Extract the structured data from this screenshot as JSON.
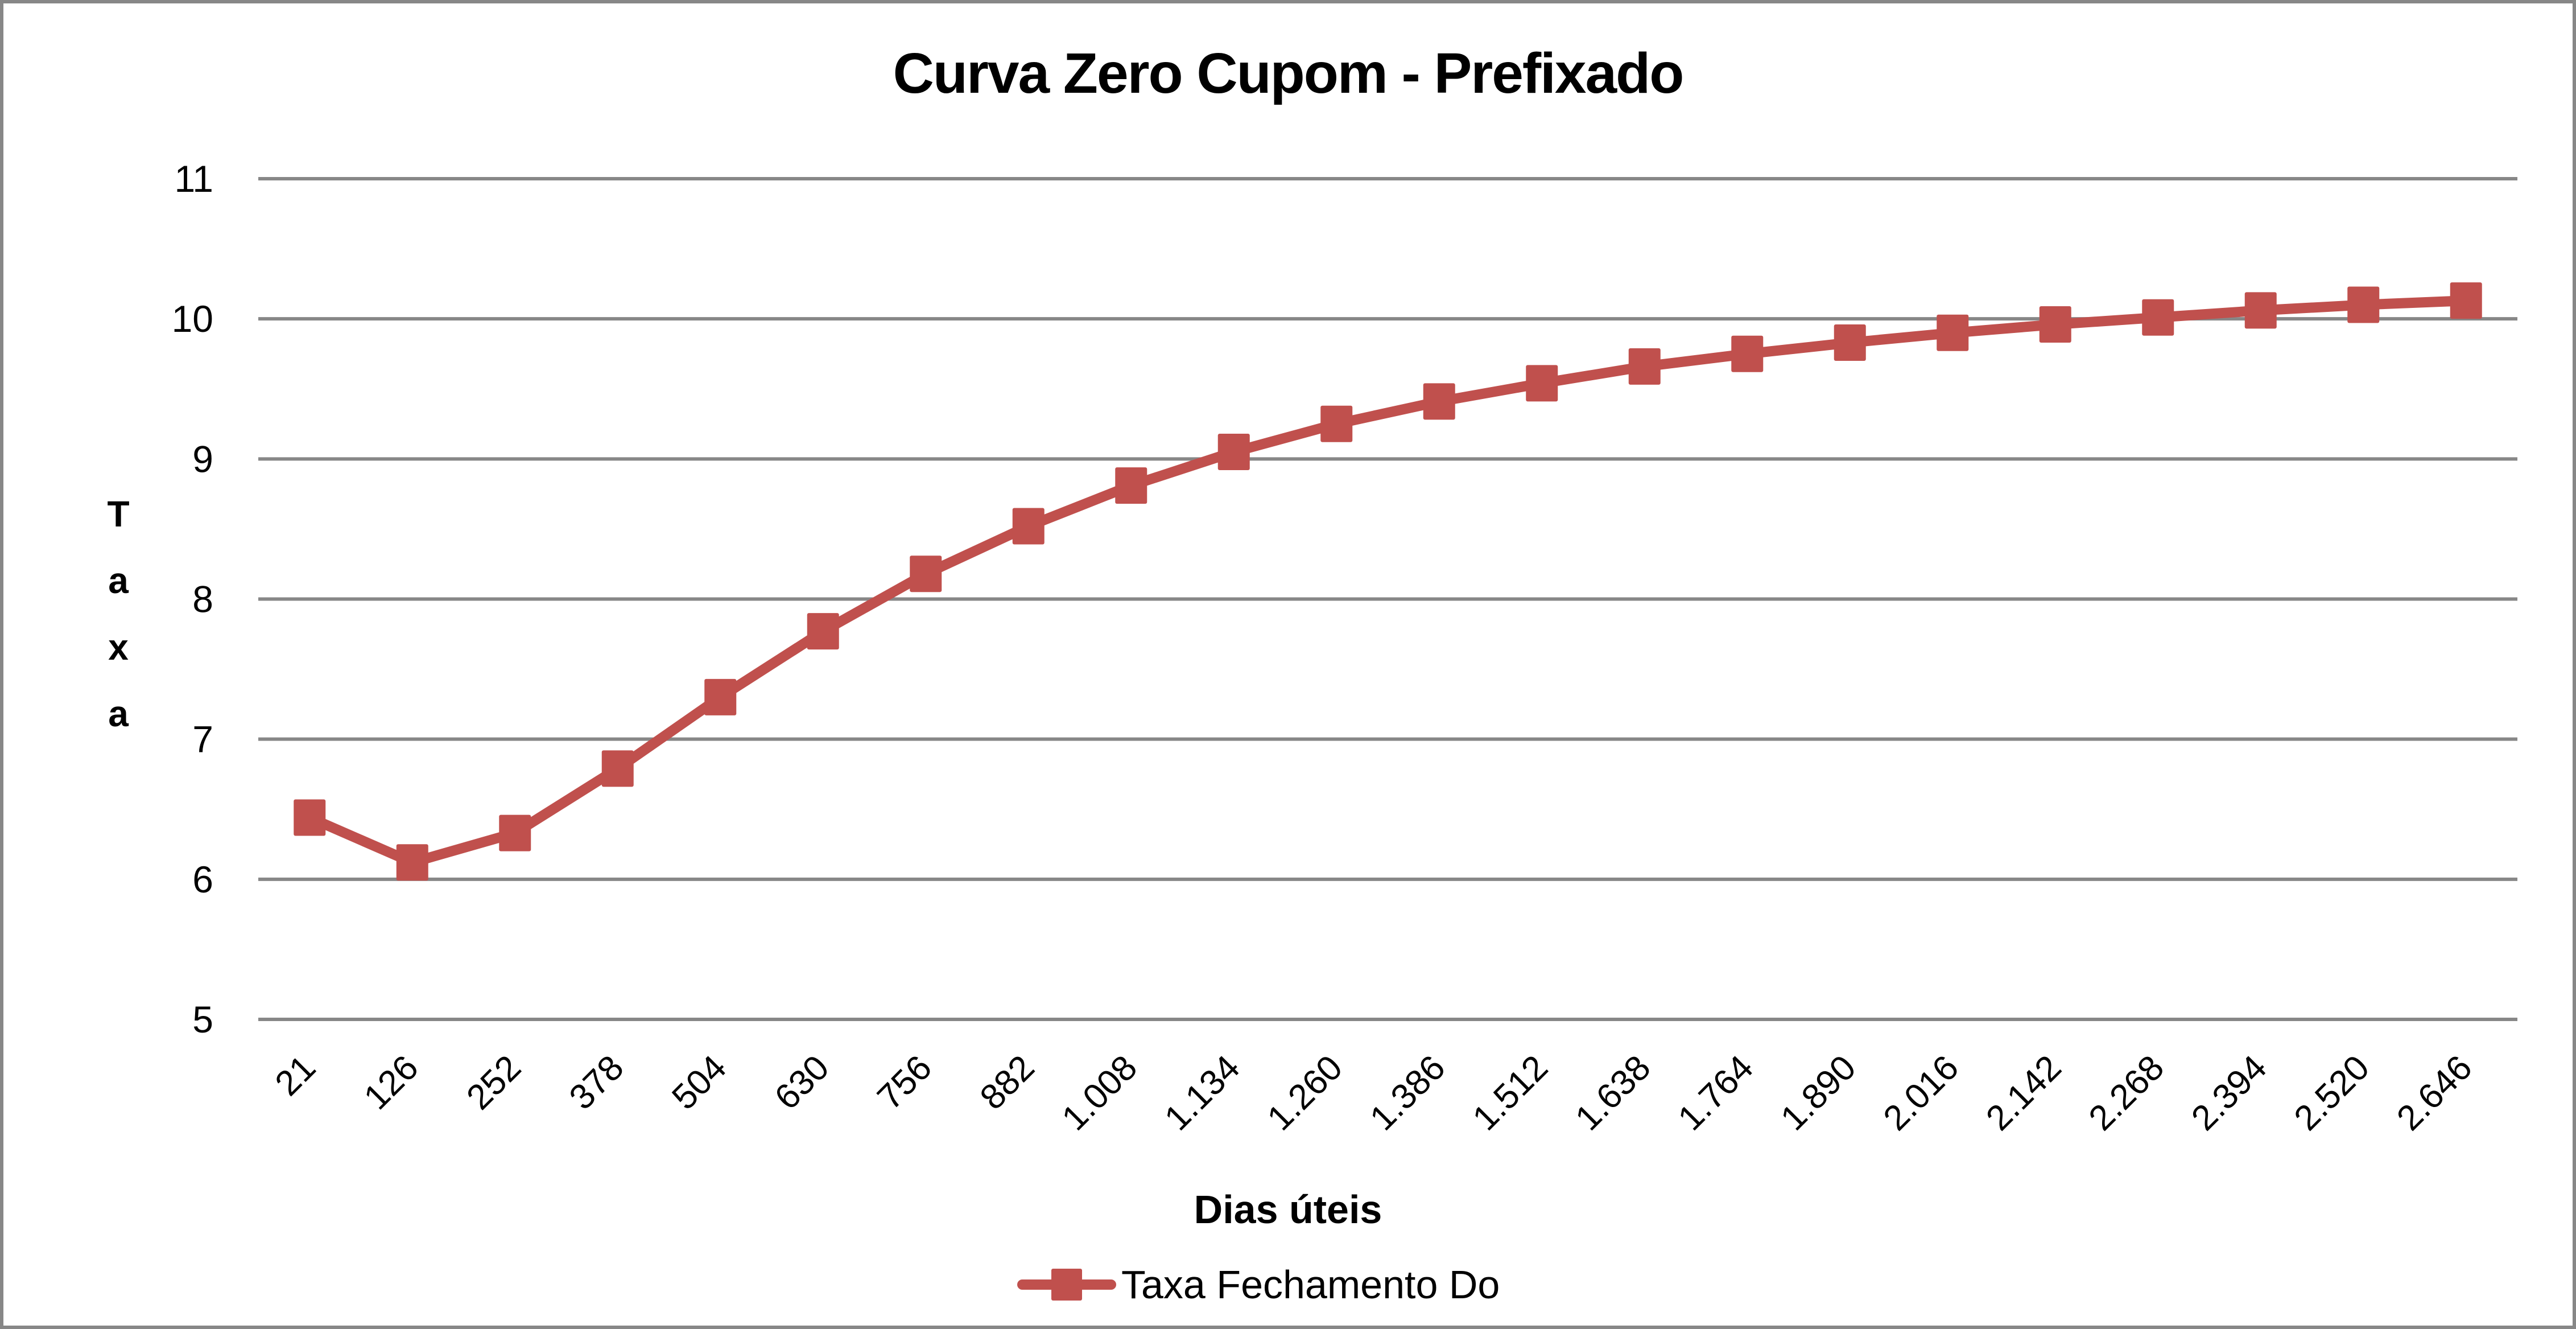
{
  "chart_data": {
    "type": "line",
    "title": "Curva Zero Cupom - Prefixado",
    "xlabel": "Dias úteis",
    "ylabel": "Taxa",
    "ylim": [
      5,
      11
    ],
    "yticks": [
      "5",
      "6",
      "7",
      "8",
      "9",
      "10",
      "11"
    ],
    "grid": true,
    "legend_position": "bottom",
    "categories": [
      "21",
      "126",
      "252",
      "378",
      "504",
      "630",
      "756",
      "882",
      "1.008",
      "1.134",
      "1.260",
      "1.386",
      "1.512",
      "1.638",
      "1.764",
      "1.890",
      "2.016",
      "2.142",
      "2.268",
      "2.394",
      "2.520",
      "2.646"
    ],
    "series": [
      {
        "name": "Taxa Fechamento Do",
        "color": "#C0504D",
        "marker": "square",
        "values": [
          6.44,
          6.12,
          6.33,
          6.79,
          7.3,
          7.77,
          8.18,
          8.52,
          8.81,
          9.05,
          9.25,
          9.41,
          9.54,
          9.66,
          9.75,
          9.83,
          9.9,
          9.96,
          10.01,
          10.06,
          10.1,
          10.13
        ]
      }
    ]
  },
  "chart": {
    "title": "Curva Zero Cupom - Prefixado",
    "y_title_letters": [
      "T",
      "a",
      "x",
      "a"
    ],
    "x_title": "Dias úteis",
    "legend_label": "Taxa Fechamento Do"
  },
  "colors": {
    "series": "#C0504D",
    "gridline": "#878787",
    "border": "#878787",
    "text": "#000000"
  }
}
